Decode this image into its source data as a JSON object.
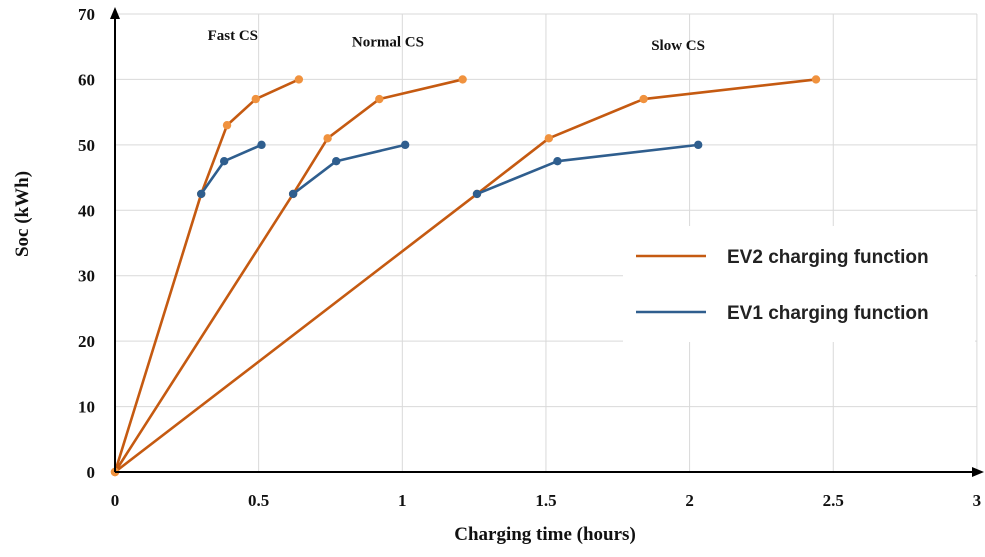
{
  "chart_data": {
    "type": "line",
    "title": "",
    "xlabel": "Charging time (hours)",
    "ylabel": "Soc (kWh)",
    "xlim": [
      0,
      3
    ],
    "ylim": [
      0,
      70
    ],
    "xticks": [
      0,
      0.5,
      1,
      1.5,
      2,
      2.5,
      3
    ],
    "xtick_labels": [
      "0",
      "0.5",
      "1",
      "1.5",
      "2",
      "2.5",
      "3"
    ],
    "yticks": [
      0,
      10,
      20,
      30,
      40,
      50,
      60,
      70
    ],
    "ytick_labels": [
      "0",
      "10",
      "20",
      "30",
      "40",
      "50",
      "60",
      "70"
    ],
    "grid": true,
    "legend_position": "right",
    "annotations": [
      {
        "text": "Fast CS",
        "x": 0.41,
        "y": 66
      },
      {
        "text": "Normal CS",
        "x": 0.95,
        "y": 65
      },
      {
        "text": "Slow CS",
        "x": 1.96,
        "y": 64.5
      }
    ],
    "series": [
      {
        "name": "EV2 charging function",
        "color": "#C55A11",
        "marker_color": "#F0923E",
        "segments": [
          {
            "label": "Fast CS",
            "x": [
              0,
              0.3,
              0.39,
              0.49,
              0.64
            ],
            "y": [
              0,
              42.5,
              53,
              57,
              60
            ]
          },
          {
            "label": "Normal CS",
            "x": [
              0,
              0.62,
              0.74,
              0.92,
              1.21
            ],
            "y": [
              0,
              42.5,
              51,
              57,
              60
            ]
          },
          {
            "label": "Slow CS",
            "x": [
              0,
              1.26,
              1.51,
              1.84,
              2.44
            ],
            "y": [
              0,
              42.5,
              51,
              57,
              60
            ]
          }
        ]
      },
      {
        "name": "EV1 charging function",
        "color": "#2F5E8E",
        "marker_color": "#2F5E8E",
        "segments": [
          {
            "label": "Fast CS",
            "x": [
              0.3,
              0.38,
              0.51
            ],
            "y": [
              42.5,
              47.5,
              50
            ]
          },
          {
            "label": "Normal CS",
            "x": [
              0.62,
              0.77,
              1.01
            ],
            "y": [
              42.5,
              47.5,
              50
            ]
          },
          {
            "label": "Slow CS",
            "x": [
              1.26,
              1.54,
              2.03
            ],
            "y": [
              42.5,
              47.5,
              50
            ]
          }
        ]
      }
    ]
  }
}
